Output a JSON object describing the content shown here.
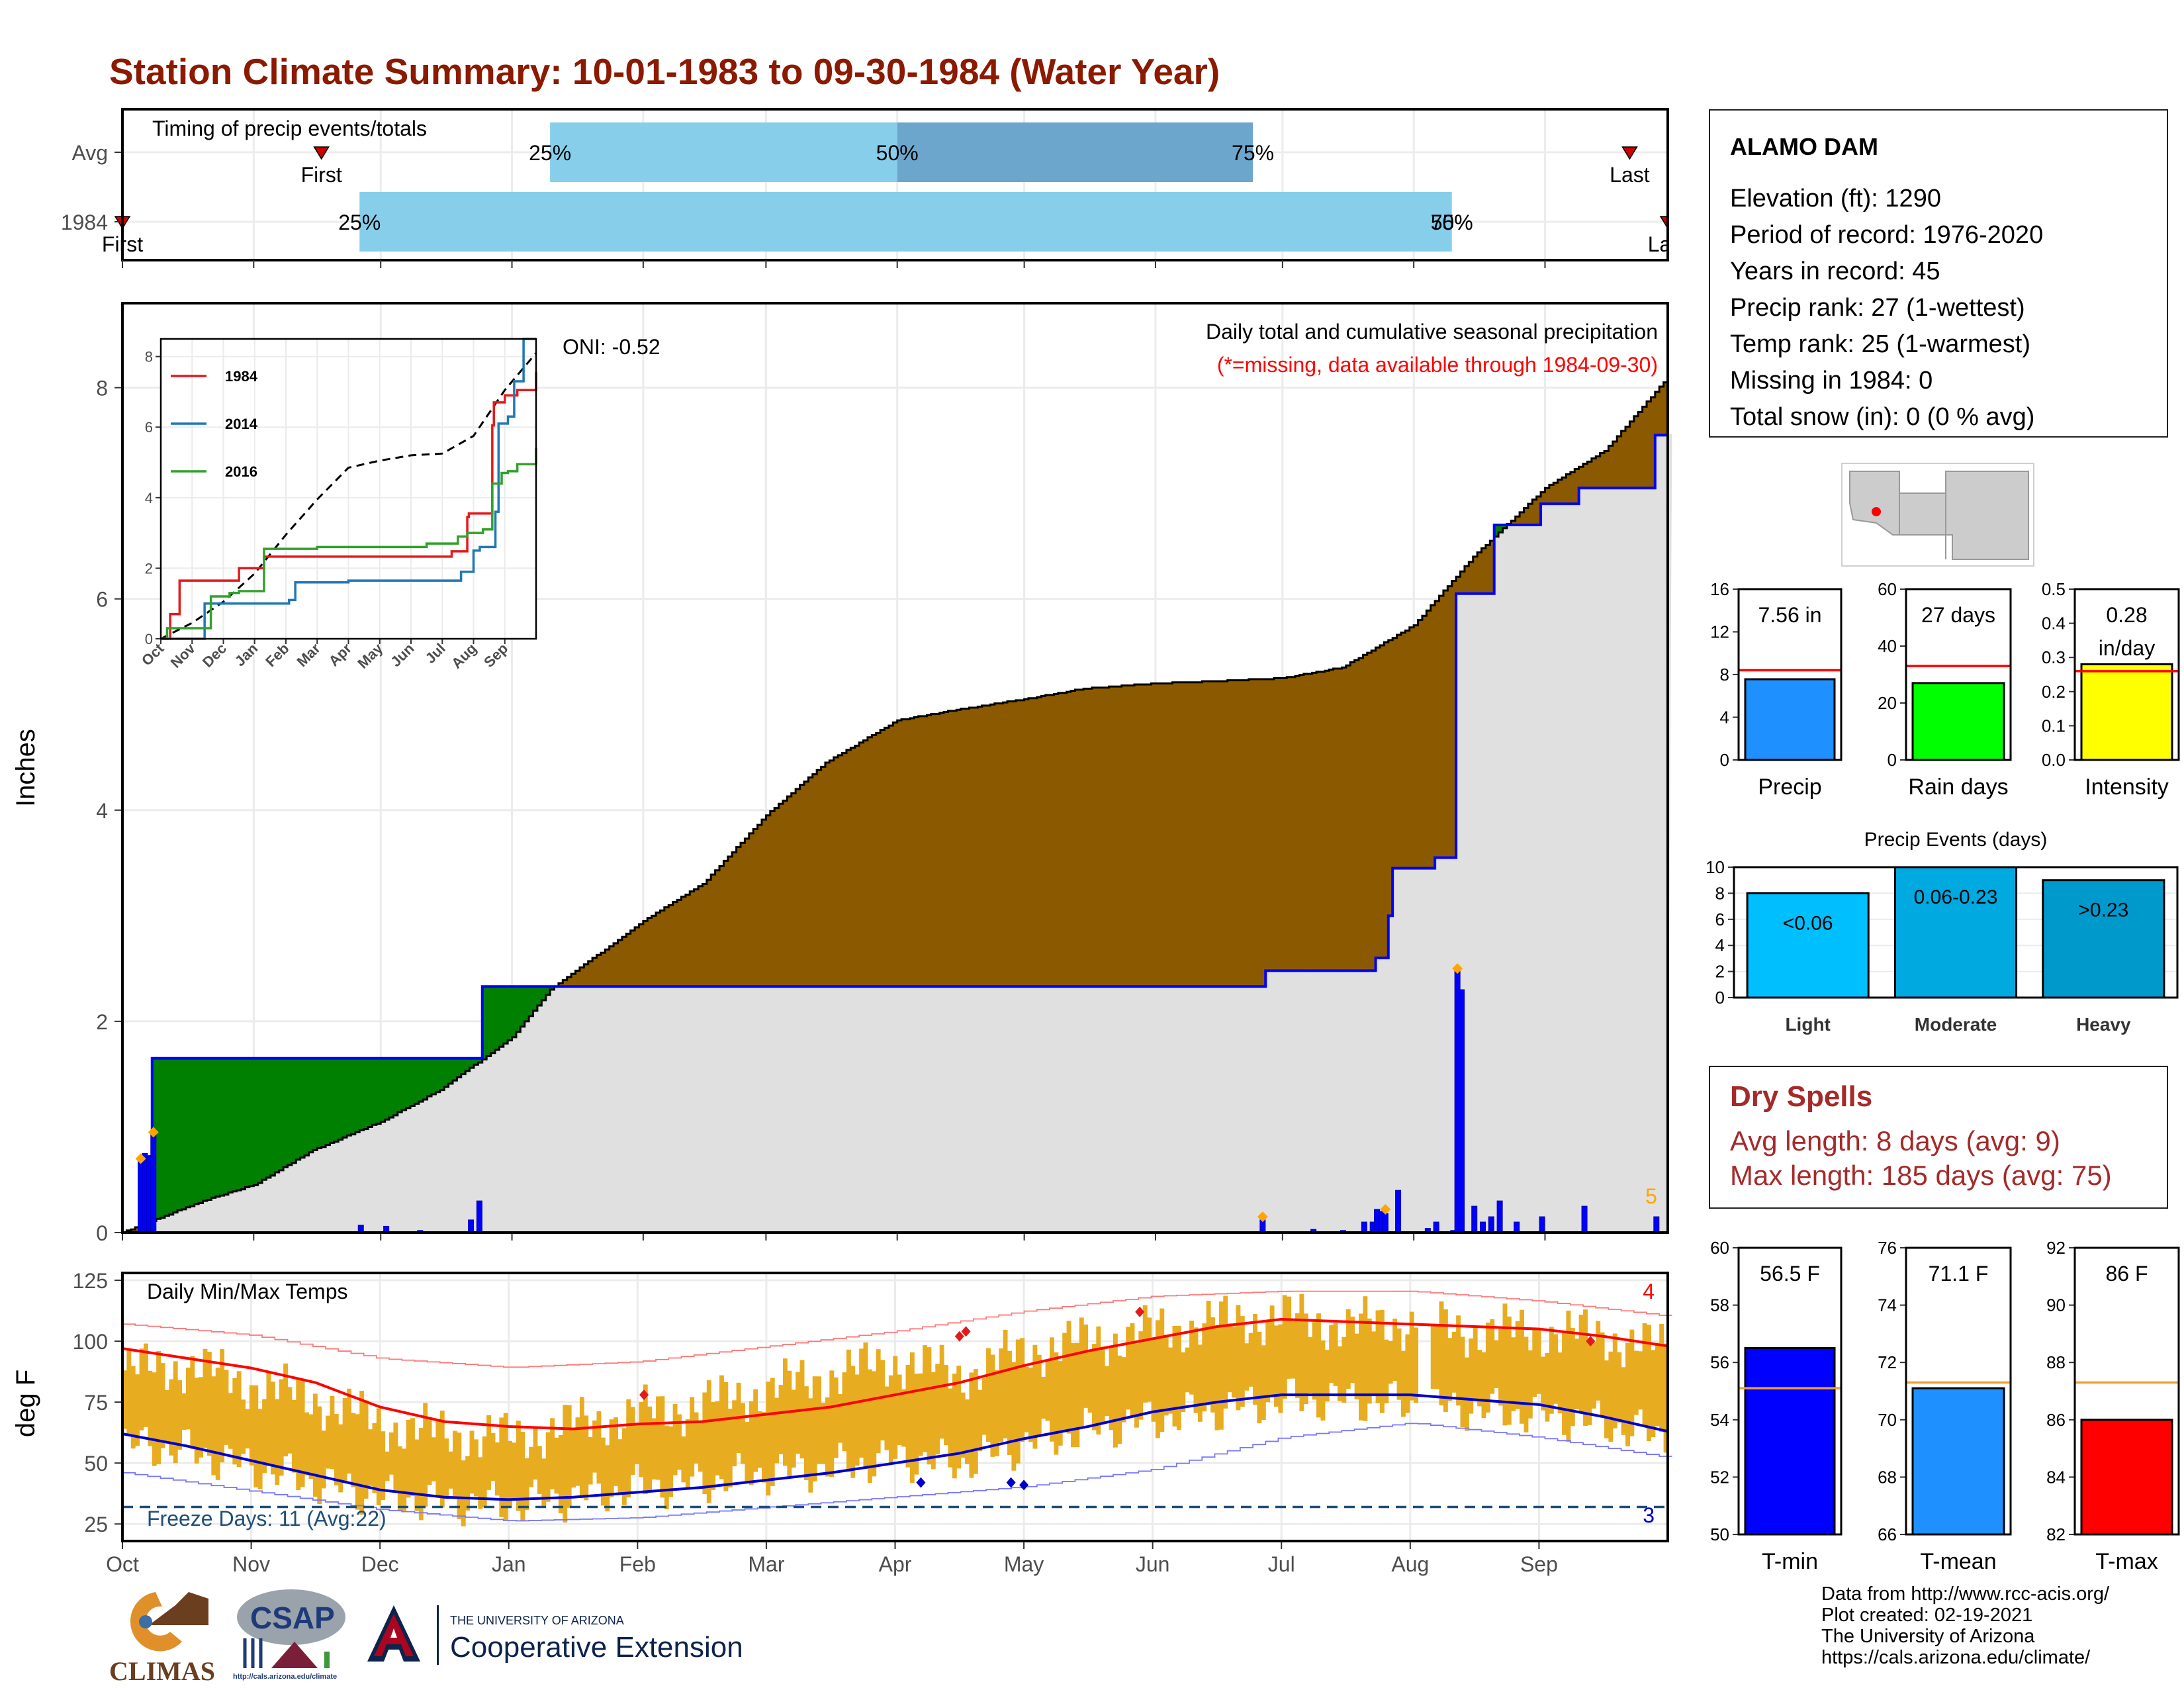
{
  "title": "Station Climate Summary: 10-01-1983 to 09-30-1984 (Water Year)",
  "colors": {
    "title": "#8b1a00",
    "cum_1984": "#8b5a00",
    "cum_avg_above": "#008000",
    "cum_fill": "#e0e0e0",
    "daily_bar": "#0000ff",
    "timing_light": "#87ceeb",
    "timing_dark": "#6ca6cd",
    "temp_bar": "#e8ac20",
    "tmax_avg": "#ff0000",
    "tmin_avg": "#0000cd",
    "dry_spells": "#a52a2a"
  },
  "timing_panel": {
    "label": "Timing of precip events/totals",
    "rows": [
      {
        "label": "Avg",
        "first_label": "First",
        "first_date": "1983-11-17",
        "last_label": "Last",
        "last_date": "1984-09-21",
        "p25_label": "25%",
        "p25_date": "1984-01-10",
        "p50_label": "50%",
        "p50_date": "1984-04-01",
        "p75_label": "75%",
        "p75_date": "1984-06-24"
      },
      {
        "label": "1984",
        "first_label": "First",
        "first_date": "1983-10-01",
        "last_label": "Last",
        "last_date": "1984-09-30",
        "p25_label": "25%",
        "p25_date": "1983-11-26",
        "p50_label": "50%",
        "p50_date": "1984-08-10",
        "p75_label": "75%",
        "p75_date": "1984-08-10"
      }
    ]
  },
  "chart_data": [
    {
      "type": "area",
      "name": "cumulative-precip",
      "title": "Daily total and cumulative seasonal precipitation",
      "subtitle": "(*=missing, data available through 1984-09-30)",
      "oni_label": "ONI: -0.52",
      "ylabel": "Inches",
      "ylim": [
        0,
        8.8
      ],
      "yticks": [
        0,
        2,
        4,
        6,
        8
      ],
      "xlim": [
        "1983-10-01",
        "1984-09-30"
      ],
      "xticks": [
        {
          "date": "1983-10-01",
          "label": "Oct"
        },
        {
          "date": "1983-11-01",
          "label": "Nov"
        },
        {
          "date": "1983-12-01",
          "label": "Dec"
        },
        {
          "date": "1984-01-01",
          "label": "Jan"
        },
        {
          "date": "1984-02-01",
          "label": "Feb"
        },
        {
          "date": "1984-03-01",
          "label": "Mar"
        },
        {
          "date": "1984-04-01",
          "label": "Apr"
        },
        {
          "date": "1984-05-01",
          "label": "May"
        },
        {
          "date": "1984-06-01",
          "label": "Jun"
        },
        {
          "date": "1984-07-01",
          "label": "Jul"
        },
        {
          "date": "1984-08-01",
          "label": "Aug"
        },
        {
          "date": "1984-09-01",
          "label": "Sep"
        }
      ],
      "series": [
        {
          "name": "1984 cumulative",
          "x": [
            "1983-10-01",
            "1983-10-05",
            "1983-10-07",
            "1983-10-08",
            "1983-12-20",
            "1983-12-25",
            "1984-01-10",
            "1984-06-26",
            "1984-06-27",
            "1984-07-20",
            "1984-07-23",
            "1984-07-26",
            "1984-07-27",
            "1984-08-04",
            "1984-08-06",
            "1984-08-10",
            "1984-08-11",
            "1984-08-17",
            "1984-08-20",
            "1984-08-25",
            "1984-08-31",
            "1984-09-09",
            "1984-09-27",
            "1984-09-30"
          ],
          "y": [
            0.0,
            0.0,
            0.72,
            1.65,
            1.65,
            2.33,
            2.33,
            2.33,
            2.48,
            2.48,
            2.6,
            3.0,
            3.45,
            3.45,
            3.55,
            3.55,
            6.05,
            6.05,
            6.7,
            6.7,
            6.9,
            7.05,
            7.55,
            7.56
          ]
        },
        {
          "name": "Avg cumulative",
          "x": [
            "1983-10-01",
            "1983-10-20",
            "1983-11-01",
            "1983-11-15",
            "1983-12-01",
            "1983-12-15",
            "1984-01-01",
            "1984-01-10",
            "1984-02-01",
            "1984-02-15",
            "1984-03-01",
            "1984-03-15",
            "1984-04-01",
            "1984-04-15",
            "1984-05-01",
            "1984-05-15",
            "1984-06-01",
            "1984-06-15",
            "1984-07-01",
            "1984-07-15",
            "1984-08-01",
            "1984-08-15",
            "1984-09-01",
            "1984-09-15",
            "1984-09-30"
          ],
          "y": [
            0.0,
            0.3,
            0.45,
            0.78,
            1.05,
            1.35,
            1.85,
            2.3,
            2.95,
            3.3,
            3.95,
            4.45,
            4.85,
            4.95,
            5.05,
            5.15,
            5.2,
            5.22,
            5.25,
            5.35,
            5.75,
            6.4,
            7.05,
            7.4,
            8.1
          ]
        }
      ],
      "daily_bars": {
        "x": [
          "1983-10-05",
          "1983-10-06",
          "1983-10-07",
          "1983-10-08",
          "1983-11-26",
          "1983-12-02",
          "1983-12-10",
          "1983-12-22",
          "1983-12-24",
          "1984-06-26",
          "1984-07-08",
          "1984-07-15",
          "1984-07-20",
          "1984-07-22",
          "1984-07-23",
          "1984-07-24",
          "1984-07-25",
          "1984-07-28",
          "1984-08-04",
          "1984-08-06",
          "1984-08-10",
          "1984-08-11",
          "1984-08-12",
          "1984-08-15",
          "1984-08-17",
          "1984-08-19",
          "1984-08-21",
          "1984-08-25",
          "1984-08-31",
          "1984-09-10",
          "1984-09-27"
        ],
        "y": [
          0.7,
          0.75,
          0.72,
          0.93,
          0.07,
          0.06,
          0.02,
          0.12,
          0.3,
          0.12,
          0.03,
          0.02,
          0.1,
          0.1,
          0.22,
          0.2,
          0.18,
          0.4,
          0.04,
          0.1,
          0.02,
          2.5,
          2.3,
          0.25,
          0.1,
          0.15,
          0.3,
          0.1,
          0.15,
          0.25,
          0.15
        ]
      },
      "missing_markers": {
        "x": [
          "1983-10-05",
          "1983-10-08",
          "1984-06-26",
          "1984-07-25",
          "1984-08-11"
        ],
        "y": [
          0.7,
          0.95,
          0.15,
          0.22,
          2.5
        ]
      },
      "missing_count_label": "5"
    },
    {
      "type": "line",
      "name": "inset-cumulative",
      "ylim": [
        0,
        8.5
      ],
      "yticks": [
        0,
        2,
        4,
        6,
        8
      ],
      "xticks": [
        "Oct",
        "Nov",
        "Dec",
        "Jan",
        "Feb",
        "Mar",
        "Apr",
        "May",
        "Jun",
        "Jul",
        "Aug",
        "Sep"
      ],
      "series": [
        {
          "name": "1984",
          "color": "#e31a1c",
          "x": [
            0,
            0.3,
            0.6,
            1.7,
            2.5,
            3.3,
            4.0,
            5.0,
            6.0,
            7.0,
            9.0,
            9.3,
            9.8,
            9.85,
            10.3,
            10.6,
            10.65,
            11.0,
            11.4,
            12.0
          ],
          "y": [
            0,
            0.7,
            1.65,
            1.65,
            2.0,
            2.33,
            2.33,
            2.33,
            2.33,
            2.33,
            2.33,
            2.48,
            3.45,
            3.55,
            3.55,
            6.05,
            6.7,
            6.9,
            7.05,
            7.56
          ]
        },
        {
          "name": "2014",
          "color": "#1f78b4",
          "x": [
            0,
            1.3,
            1.4,
            3.6,
            4.1,
            4.3,
            5.0,
            6.0,
            7.0,
            9.2,
            9.6,
            10.0,
            10.2,
            10.7,
            10.8,
            11.1,
            11.3,
            11.6,
            12.0
          ],
          "y": [
            0,
            0.0,
            1.0,
            1.0,
            1.1,
            1.6,
            1.6,
            1.65,
            1.65,
            1.65,
            1.9,
            2.5,
            2.6,
            3.6,
            6.1,
            6.3,
            7.3,
            8.5,
            8.5
          ]
        },
        {
          "name": "2016",
          "color": "#33a02c",
          "x": [
            0,
            0.2,
            1.3,
            1.6,
            2.2,
            2.5,
            3.3,
            5.0,
            6.0,
            7.0,
            8.5,
            9.5,
            9.8,
            10.3,
            10.6,
            10.9,
            11.1,
            11.4,
            12.0
          ],
          "y": [
            0,
            0.3,
            0.3,
            1.2,
            1.3,
            1.35,
            2.55,
            2.6,
            2.6,
            2.6,
            2.7,
            2.9,
            3.0,
            3.1,
            4.4,
            4.7,
            4.75,
            4.95,
            5.4
          ]
        }
      ],
      "avg_series": {
        "name": "Avg",
        "x": [
          0,
          1,
          2,
          3,
          4,
          5,
          6,
          7,
          8,
          9,
          10,
          11,
          12
        ],
        "y": [
          0,
          0.45,
          1.05,
          1.85,
          2.95,
          3.95,
          4.85,
          5.05,
          5.2,
          5.25,
          5.75,
          7.05,
          8.1
        ]
      }
    },
    {
      "type": "bar",
      "name": "temperature",
      "title": "Daily Min/Max Temps",
      "ylabel": "deg F",
      "ylim": [
        18,
        128
      ],
      "yticks": [
        25,
        50,
        75,
        100,
        125
      ],
      "freeze_label": "Freeze Days: 11 (Avg:22)",
      "freeze_temp": 32,
      "tmax_count_label": "4",
      "tmin_count_label": "3",
      "xticks": [
        "Oct",
        "Nov",
        "Dec",
        "Jan",
        "Feb",
        "Mar",
        "Apr",
        "May",
        "Jun",
        "Jul",
        "Aug",
        "Sep"
      ],
      "tmax_avg": {
        "x": [
          0,
          0.5,
          1.0,
          1.5,
          2.0,
          2.5,
          3.0,
          3.5,
          4.0,
          4.5,
          5.0,
          5.5,
          6.0,
          6.5,
          7.0,
          7.5,
          8.0,
          8.5,
          9.0,
          9.5,
          10.0,
          10.5,
          11.0,
          11.5,
          12.0
        ],
        "y": [
          97,
          93,
          89,
          83,
          73,
          67,
          65,
          64,
          66,
          67,
          70,
          73,
          78,
          83,
          90,
          96,
          101,
          106,
          109,
          108,
          107,
          106,
          105,
          102,
          98
        ]
      },
      "tmin_avg": {
        "x": [
          0,
          0.5,
          1.0,
          1.5,
          2.0,
          2.5,
          3.0,
          3.5,
          4.0,
          4.5,
          5.0,
          5.5,
          6.0,
          6.5,
          7.0,
          7.5,
          8.0,
          8.5,
          9.0,
          9.5,
          10.0,
          10.5,
          11.0,
          11.5,
          12.0
        ],
        "y": [
          62,
          57,
          51,
          45,
          39,
          36,
          35,
          36,
          38,
          40,
          43,
          46,
          50,
          54,
          60,
          65,
          71,
          75,
          78,
          78,
          78,
          76,
          74,
          69,
          63
        ]
      },
      "tmax_record": {
        "x": [
          0,
          1,
          2,
          3,
          4,
          5,
          6,
          7,
          8,
          9,
          10,
          11,
          12
        ],
        "y": [
          107,
          102,
          92,
          88,
          90,
          96,
          102,
          110,
          116,
          118,
          118,
          114,
          108
        ]
      },
      "tmin_record": {
        "x": [
          0,
          1,
          2,
          3,
          4,
          5,
          6,
          7,
          8,
          9,
          10,
          11,
          12
        ],
        "y": [
          46,
          38,
          30,
          25,
          26,
          30,
          34,
          38,
          45,
          58,
          64,
          58,
          50
        ]
      },
      "daily_band": {
        "x": [
          0,
          0.5,
          1.0,
          1.5,
          2.0,
          2.5,
          3.0,
          3.5,
          4.0,
          4.5,
          5.0,
          5.5,
          6.0,
          6.5,
          7.0,
          7.5,
          8.0,
          8.5,
          9.0,
          9.5,
          10.0,
          10.5,
          11.0,
          11.5,
          12.0
        ],
        "tmax": [
          88,
          90,
          82,
          76,
          66,
          62,
          60,
          66,
          70,
          74,
          80,
          86,
          92,
          86,
          96,
          100,
          104,
          108,
          110,
          106,
          108,
          104,
          104,
          102,
          96
        ],
        "tmin": [
          58,
          55,
          48,
          42,
          36,
          34,
          33,
          36,
          40,
          42,
          46,
          48,
          52,
          50,
          58,
          64,
          68,
          72,
          76,
          76,
          74,
          72,
          70,
          66,
          60
        ]
      },
      "record_markers": {
        "x": [
          4.05,
          6.5,
          6.55,
          7.9,
          11.4
        ],
        "y": [
          78,
          102,
          104,
          112,
          100
        ],
        "color": "#e31a1c"
      },
      "cold_markers": {
        "x": [
          6.2,
          6.9,
          7.0
        ],
        "y": [
          42,
          42,
          41
        ],
        "color": "#0000cd"
      }
    },
    {
      "type": "bar",
      "name": "precip-summary",
      "panels": [
        {
          "label": "Precip",
          "value": 7.56,
          "value_label": "7.56 in",
          "avg": 8.4,
          "ylim": [
            0,
            16
          ],
          "yticks": [
            0,
            4,
            8,
            12,
            16
          ],
          "color": "#1e90ff"
        },
        {
          "label": "Rain days",
          "value": 27,
          "value_label": "27 days",
          "avg": 33,
          "ylim": [
            0,
            60
          ],
          "yticks": [
            0,
            20,
            40,
            60
          ],
          "color": "#00ff00"
        },
        {
          "label": "Intensity",
          "value": 0.28,
          "value_label": "0.28",
          "value_label2": "in/day",
          "avg": 0.26,
          "ylim": [
            0,
            0.5
          ],
          "yticks": [
            0.0,
            0.1,
            0.2,
            0.3,
            0.4,
            0.5
          ],
          "color": "#ffff00"
        }
      ]
    },
    {
      "type": "bar",
      "name": "precip-events",
      "title": "Precip Events (days)",
      "categories": [
        "Light",
        "Moderate",
        "Heavy"
      ],
      "values": [
        8,
        10,
        9
      ],
      "value_labels": [
        "<0.06",
        "0.06-0.23",
        ">0.23"
      ],
      "ylim": [
        0,
        10
      ],
      "yticks": [
        0,
        2,
        4,
        6,
        8,
        10
      ],
      "colors": [
        "#00bfff",
        "#00a9e0",
        "#0099cc"
      ]
    },
    {
      "type": "bar",
      "name": "temp-summary",
      "panels": [
        {
          "label": "T-min",
          "value": 56.5,
          "value_label": "56.5 F",
          "avg": 55.1,
          "ylim": [
            50,
            60
          ],
          "yticks": [
            50,
            52,
            54,
            56,
            58,
            60
          ],
          "color": "#0000ff"
        },
        {
          "label": "T-mean",
          "value": 71.1,
          "value_label": "71.1 F",
          "avg": 71.3,
          "ylim": [
            66,
            76
          ],
          "yticks": [
            66,
            68,
            70,
            72,
            74,
            76
          ],
          "color": "#1e90ff"
        },
        {
          "label": "T-max",
          "value": 86,
          "value_label": "86 F",
          "avg": 87.3,
          "ylim": [
            82,
            92
          ],
          "yticks": [
            82,
            84,
            86,
            88,
            90,
            92
          ],
          "color": "#ff0000"
        }
      ]
    }
  ],
  "station": {
    "name": "ALAMO DAM",
    "lines": [
      "Elevation (ft): 1290",
      "Period of record: 1976-2020",
      "Years in record: 45",
      "Precip rank: 27 (1-wettest)",
      "Temp rank: 25 (1-warmest)",
      "Missing in 1984: 0",
      "Total snow (in): 0 (0 % avg)"
    ]
  },
  "dry_spells": {
    "title": "Dry Spells",
    "avg_length": "Avg length: 8 days (avg: 9)",
    "max_length": "Max length: 185 days (avg: 75)"
  },
  "logos": {
    "climas": "CLIMAS",
    "csap": "CSAP",
    "csap_url": "http://cals.arizona.edu/climate",
    "ua_small": "THE UNIVERSITY OF ARIZONA",
    "ua_large": "Cooperative Extension"
  },
  "credits": [
    "Data from http://www.rcc-acis.org/",
    "Plot created: 02-19-2021",
    "The University of Arizona",
    "https://cals.arizona.edu/climate/"
  ]
}
